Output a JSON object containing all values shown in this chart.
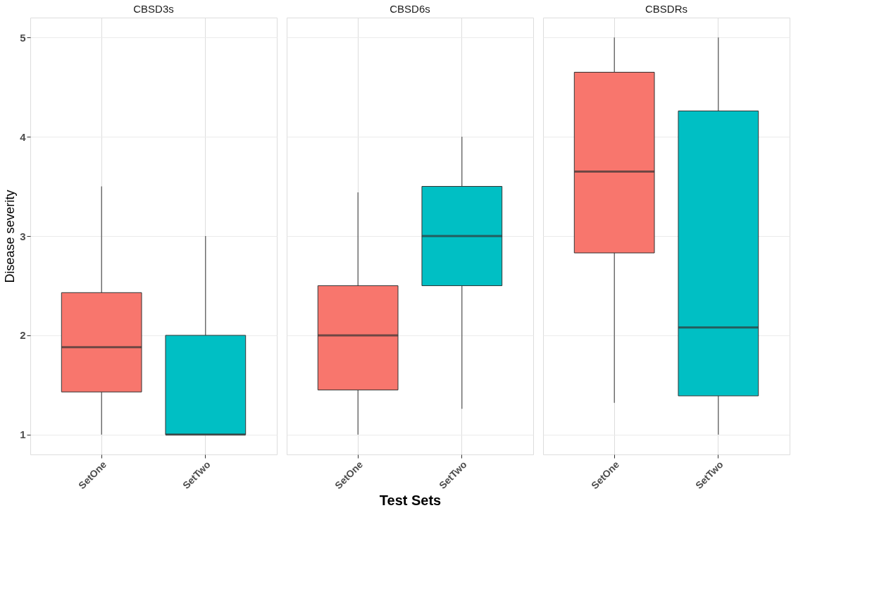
{
  "chart_data": [
    {
      "type": "box",
      "title": "CBSD3s",
      "ylabel": "Disease severity",
      "categories": [
        "SetOne",
        "SetTwo"
      ],
      "colors": [
        "#f8766d",
        "#00bfc4"
      ],
      "boxes": [
        {
          "low": 1,
          "q1": 1.43,
          "median": 1.88,
          "q3": 2.43,
          "high": 3.5
        },
        {
          "low": 1,
          "q1": 1,
          "median": 1,
          "q3": 2,
          "high": 3
        }
      ],
      "ylim": [
        0.8,
        5.2
      ],
      "yticks": [
        1,
        2,
        3,
        4,
        5
      ],
      "grid": true
    },
    {
      "type": "box",
      "title": "CBSD6s",
      "xlabel": "Test Sets",
      "categories": [
        "SetOne",
        "SetTwo"
      ],
      "colors": [
        "#f8766d",
        "#00bfc4"
      ],
      "boxes": [
        {
          "low": 1,
          "q1": 1.45,
          "median": 2,
          "q3": 2.5,
          "high": 3.44
        },
        {
          "low": 1.26,
          "q1": 2.5,
          "median": 3,
          "q3": 3.5,
          "high": 4
        }
      ],
      "ylim": [
        0.8,
        5.2
      ],
      "yticks": [
        1,
        2,
        3,
        4,
        5
      ],
      "grid": true,
      "tick_labels": "x"
    },
    {
      "type": "box",
      "title": "CBSDRs",
      "categories": [
        "SetOne",
        "SetTwo"
      ],
      "colors": [
        "#f8766d",
        "#00bfc4"
      ],
      "boxes": [
        {
          "low": 1.32,
          "q1": 2.83,
          "median": 3.65,
          "q3": 4.65,
          "high": 5
        },
        {
          "low": 1,
          "q1": 1.39,
          "median": 2.08,
          "q3": 4.26,
          "high": 5
        }
      ],
      "ylim": [
        0.8,
        5.2
      ],
      "yticks": [
        1,
        2,
        3,
        4,
        5
      ],
      "grid": true,
      "tick_labels": "x"
    }
  ]
}
